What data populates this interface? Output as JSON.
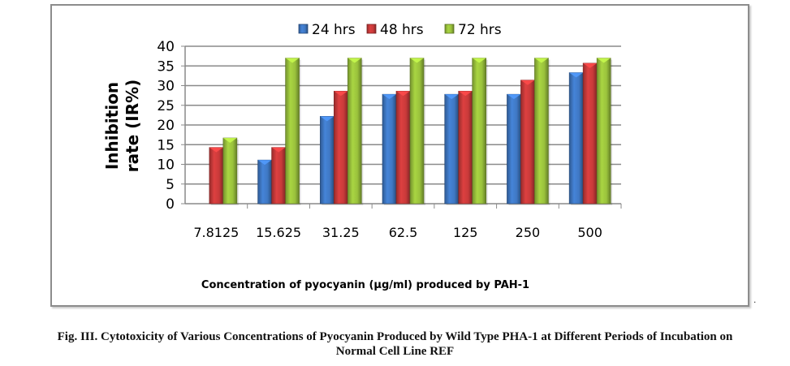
{
  "figure_caption_line1": "Fig. III. Cytotoxicity of Various Concentrations of Pyocyanin Produced by Wild Type PHA-1 at Different Periods of Incubation on",
  "figure_caption_line2": "Normal Cell Line REF",
  "trailing_mark": ".",
  "colors": {
    "24 hrs": "#3f78c4",
    "48 hrs": "#c93a3a",
    "72 hrs": "#9ac23c"
  },
  "chart_data": {
    "type": "bar",
    "title": "",
    "xlabel": "Concentration of pyocyanin (µg/ml) produced by PAH-1",
    "ylabel": "Inhibition rate (IR%)",
    "ylabel_lines": [
      "Inhibition",
      "rate (IR%)"
    ],
    "ylim": [
      0,
      40
    ],
    "yticks": [
      0,
      5,
      10,
      15,
      20,
      25,
      30,
      35,
      40
    ],
    "grid": true,
    "legend_position": "top",
    "categories": [
      "7.8125",
      "15.625",
      "31.25",
      "62.5",
      "125",
      "250",
      "500"
    ],
    "series": [
      {
        "name": "24 hrs",
        "values": [
          0,
          11.1,
          22.2,
          27.8,
          27.8,
          27.8,
          33.3
        ]
      },
      {
        "name": "48 hrs",
        "values": [
          14.3,
          14.3,
          28.6,
          28.6,
          28.6,
          31.4,
          35.7
        ]
      },
      {
        "name": "72 hrs",
        "values": [
          16.7,
          37,
          37,
          37,
          37,
          37,
          37
        ]
      }
    ]
  }
}
